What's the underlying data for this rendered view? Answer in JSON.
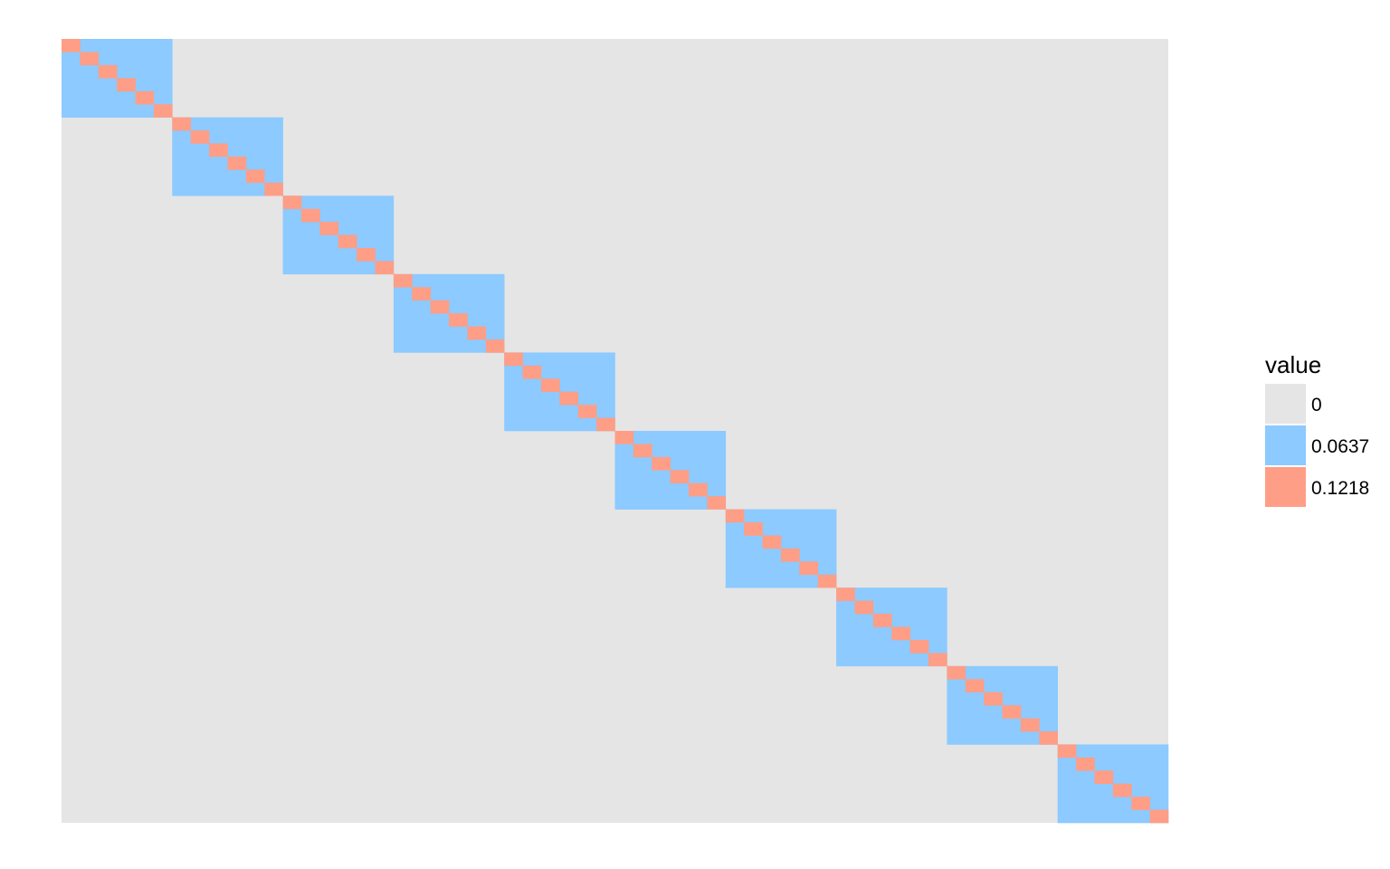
{
  "chart_data": {
    "type": "heatmap",
    "n_rows": 60,
    "n_cols": 60,
    "block_size": 6,
    "n_blocks": 10,
    "cell_rule": "value is 0.1218 on the diagonal, 0.0637 elsewhere within each 6x6 diagonal block, 0 outside the blocks",
    "levels": [
      {
        "label": "0",
        "value": 0,
        "color": "#e5e5e5"
      },
      {
        "label": "0.0637",
        "value": 0.0637,
        "color": "#8ccaff"
      },
      {
        "label": "0.1218",
        "value": 0.1218,
        "color": "#ff9e86"
      }
    ],
    "legend_title": "value",
    "legend_position": "right",
    "xlabel": "",
    "ylabel": "",
    "grid": false
  }
}
